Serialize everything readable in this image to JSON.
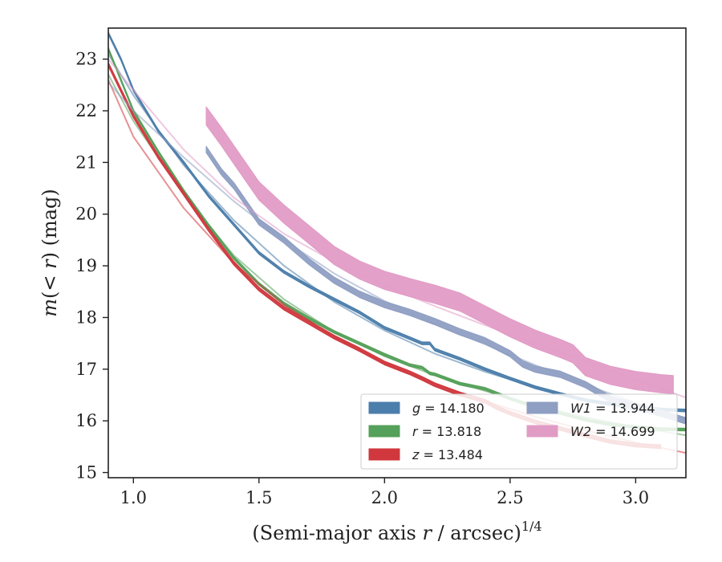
{
  "chart_data": {
    "type": "line",
    "xlabel": "(Semi-major axis r / arcsec)",
    "xlabel_parts": {
      "pre": "(Semi-major axis ",
      "var": "r",
      "post": " / arcsec)",
      "sup": "1/4"
    },
    "ylabel": "m(< r) (mag)",
    "ylabel_parts": {
      "pre": "m",
      "mid": "(< ",
      "var": "r",
      "post": ") (mag)"
    },
    "xlim": [
      0.9,
      3.2
    ],
    "ylim": [
      23.6,
      14.9
    ],
    "y_inverted": true,
    "x_ticks": [
      "1.0",
      "1.5",
      "2.0",
      "2.5",
      "3.0"
    ],
    "y_ticks": [
      "15",
      "16",
      "17",
      "18",
      "19",
      "20",
      "21",
      "22",
      "23"
    ],
    "grid": false,
    "legend_placement": "lower-right",
    "series": [
      {
        "name": "g = 14.180",
        "legend": {
          "var": "g",
          "value": "14.180"
        },
        "color": "#4c7eab",
        "band_width": 0.05,
        "x": [
          0.9,
          0.95,
          1.0,
          1.1,
          1.2,
          1.3,
          1.4,
          1.5,
          1.6,
          1.7,
          1.8,
          1.9,
          2.0,
          2.1,
          2.15,
          2.18,
          2.2,
          2.3,
          2.4,
          2.5,
          2.6,
          2.7,
          2.8,
          2.9,
          3.0,
          3.1,
          3.2
        ],
        "y": [
          23.5,
          23.0,
          22.4,
          21.6,
          21.0,
          20.35,
          19.8,
          19.25,
          18.88,
          18.6,
          18.35,
          18.1,
          17.8,
          17.6,
          17.5,
          17.5,
          17.38,
          17.2,
          17.0,
          16.82,
          16.65,
          16.52,
          16.4,
          16.33,
          16.27,
          16.22,
          16.2
        ],
        "model_x": [
          0.9,
          1.0,
          1.2,
          1.4,
          1.6,
          1.8,
          2.0,
          2.2,
          2.4,
          2.6,
          2.8,
          3.0,
          3.2
        ],
        "model_y": [
          23.1,
          22.3,
          20.95,
          19.88,
          19.0,
          18.3,
          17.75,
          17.3,
          16.95,
          16.65,
          16.4,
          16.2,
          16.05
        ]
      },
      {
        "name": "r = 13.818",
        "legend": {
          "var": "r",
          "value": "13.818"
        },
        "color": "#55a05a",
        "band_width": 0.05,
        "x": [
          0.9,
          1.0,
          1.1,
          1.2,
          1.3,
          1.4,
          1.5,
          1.6,
          1.7,
          1.8,
          1.9,
          2.0,
          2.1,
          2.15,
          2.18,
          2.2,
          2.3,
          2.4,
          2.5,
          2.6,
          2.7,
          2.8,
          2.9,
          3.0,
          3.1,
          3.2
        ],
        "y": [
          23.2,
          22.0,
          21.2,
          20.45,
          19.78,
          19.15,
          18.65,
          18.27,
          17.98,
          17.72,
          17.5,
          17.28,
          17.08,
          17.03,
          16.92,
          16.9,
          16.72,
          16.62,
          16.43,
          16.27,
          16.15,
          16.02,
          15.93,
          15.88,
          15.84,
          15.83
        ],
        "model_x": [
          0.9,
          1.0,
          1.2,
          1.4,
          1.6,
          1.8,
          2.0,
          2.2,
          2.4,
          2.6,
          2.8,
          3.0,
          3.2
        ],
        "model_y": [
          22.7,
          21.8,
          20.38,
          19.2,
          18.35,
          17.72,
          17.25,
          16.88,
          16.58,
          16.3,
          16.07,
          15.88,
          15.72
        ]
      },
      {
        "name": "z = 13.484",
        "legend": {
          "var": "z",
          "value": "13.484"
        },
        "color": "#d0383e",
        "band_width": 0.07,
        "x": [
          0.9,
          1.0,
          1.1,
          1.2,
          1.3,
          1.4,
          1.5,
          1.6,
          1.7,
          1.8,
          1.9,
          2.0,
          2.1,
          2.15,
          2.2,
          2.3,
          2.4,
          2.45,
          2.5,
          2.6,
          2.7,
          2.8,
          2.9,
          3.0,
          3.1
        ],
        "y": [
          22.9,
          21.9,
          21.1,
          20.4,
          19.7,
          19.05,
          18.55,
          18.18,
          17.9,
          17.62,
          17.38,
          17.12,
          16.93,
          16.82,
          16.7,
          16.52,
          16.38,
          16.25,
          16.15,
          15.98,
          15.85,
          15.72,
          15.6,
          15.53,
          15.5
        ],
        "model_x": [
          0.9,
          1.0,
          1.2,
          1.4,
          1.6,
          1.8,
          2.0,
          2.2,
          2.4,
          2.6,
          2.8,
          3.0,
          3.2
        ],
        "model_y": [
          22.6,
          21.5,
          20.12,
          19.05,
          18.25,
          17.62,
          17.12,
          16.72,
          16.38,
          16.08,
          15.82,
          15.58,
          15.38
        ]
      },
      {
        "name": "W1 = 13.944",
        "legend": {
          "var": "W1",
          "value": "13.944"
        },
        "color": "#8f9fc3",
        "band_width": 0.12,
        "x": [
          1.29,
          1.35,
          1.4,
          1.5,
          1.6,
          1.7,
          1.8,
          1.9,
          2.0,
          2.1,
          2.2,
          2.3,
          2.4,
          2.5,
          2.55,
          2.6,
          2.7,
          2.8,
          2.9,
          3.0,
          3.1,
          3.2
        ],
        "y": [
          21.25,
          20.82,
          20.55,
          19.85,
          19.5,
          19.08,
          18.72,
          18.45,
          18.25,
          18.1,
          17.92,
          17.72,
          17.55,
          17.3,
          17.1,
          17.0,
          16.9,
          16.7,
          16.42,
          16.28,
          16.15,
          16.0
        ],
        "model_x": [
          0.9,
          1.0,
          1.2,
          1.4,
          1.6,
          1.8,
          2.0,
          2.2,
          2.4,
          2.6,
          2.8,
          3.0,
          3.2
        ],
        "model_y": [
          22.55,
          22.0,
          21.1,
          20.25,
          19.5,
          18.85,
          18.32,
          17.88,
          17.48,
          17.08,
          16.7,
          16.35,
          16.02
        ]
      },
      {
        "name": "W2 = 14.699",
        "legend": {
          "var": "W2",
          "value": "14.699"
        },
        "color": "#e19cc6",
        "band_width": 0.35,
        "x": [
          1.29,
          1.35,
          1.4,
          1.5,
          1.6,
          1.7,
          1.8,
          1.9,
          2.0,
          2.1,
          2.2,
          2.3,
          2.4,
          2.5,
          2.6,
          2.7,
          2.75,
          2.8,
          2.9,
          3.0,
          3.1,
          3.15
        ],
        "y": [
          21.9,
          21.5,
          21.15,
          20.45,
          20.0,
          19.6,
          19.2,
          18.92,
          18.72,
          18.58,
          18.45,
          18.3,
          18.05,
          17.8,
          17.58,
          17.4,
          17.3,
          17.05,
          16.88,
          16.78,
          16.72,
          16.7
        ],
        "model_x": [
          0.9,
          1.0,
          1.2,
          1.4,
          1.6,
          1.8,
          2.0,
          2.2,
          2.4,
          2.6,
          2.8,
          3.0,
          3.2
        ],
        "model_y": [
          23.0,
          22.4,
          21.25,
          20.32,
          19.62,
          19.08,
          18.62,
          18.22,
          17.85,
          17.5,
          17.15,
          16.8,
          16.45
        ]
      }
    ]
  }
}
